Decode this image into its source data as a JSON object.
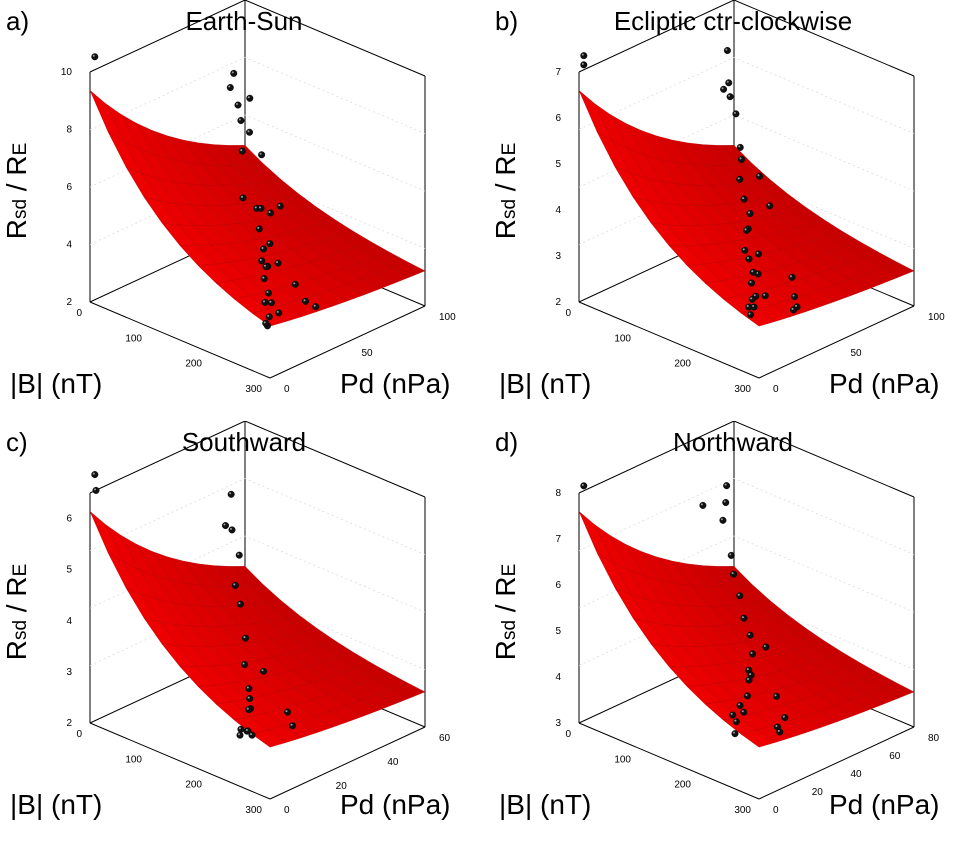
{
  "labels": {
    "y_main": "R",
    "y_sub": "sd",
    "y_sep": " / R",
    "y_sub2": "E",
    "x_axis": "|B| (nT)",
    "z_axis": "Pd (nPa)"
  },
  "colors": {
    "surface": "#e60000",
    "surface_edge": "#b00000",
    "point": "#111111",
    "axis": "#000000"
  },
  "chart_data": [
    {
      "type": "scatter",
      "letter": "a)",
      "title": "Earth-Sun",
      "ylim": [
        2,
        10
      ],
      "y_ticks": [
        "10",
        "8",
        "6",
        "4",
        "2"
      ],
      "x_ticks": [
        "0",
        "100",
        "200",
        "300"
      ],
      "z_ticks": [
        "0",
        "50",
        "100"
      ],
      "xlabel": "|B| (nT)",
      "zlabel": "Pd (nPa)",
      "ylabel": "Rsd / RE",
      "points": [
        {
          "B": 8,
          "Pd": 100,
          "R": 10.6
        },
        {
          "B": 20,
          "Pd": 15,
          "R": 8.0
        },
        {
          "B": 22,
          "Pd": 18,
          "R": 7.6
        },
        {
          "B": 40,
          "Pd": 20,
          "R": 7.2
        },
        {
          "B": 50,
          "Pd": 22,
          "R": 6.8
        },
        {
          "B": 60,
          "Pd": 25,
          "R": 5.9
        },
        {
          "B": 70,
          "Pd": 24,
          "R": 7.8
        },
        {
          "B": 85,
          "Pd": 30,
          "R": 6.9
        },
        {
          "B": 100,
          "Pd": 28,
          "R": 6.2
        },
        {
          "B": 100,
          "Pd": 40,
          "R": 5.0
        },
        {
          "B": 110,
          "Pd": 35,
          "R": 4.6
        },
        {
          "B": 130,
          "Pd": 40,
          "R": 4.9
        },
        {
          "B": 140,
          "Pd": 45,
          "R": 4.4
        },
        {
          "B": 150,
          "Pd": 42,
          "R": 3.9
        },
        {
          "B": 160,
          "Pd": 50,
          "R": 4.0
        },
        {
          "B": 170,
          "Pd": 55,
          "R": 3.8
        },
        {
          "B": 180,
          "Pd": 55,
          "R": 3.7
        },
        {
          "B": 190,
          "Pd": 60,
          "R": 3.9
        },
        {
          "B": 200,
          "Pd": 65,
          "R": 3.7
        },
        {
          "B": 210,
          "Pd": 60,
          "R": 4.2
        },
        {
          "B": 220,
          "Pd": 70,
          "R": 3.5
        },
        {
          "B": 230,
          "Pd": 72,
          "R": 3.3
        },
        {
          "B": 240,
          "Pd": 80,
          "R": 3.6
        },
        {
          "B": 250,
          "Pd": 75,
          "R": 3.2
        },
        {
          "B": 260,
          "Pd": 85,
          "R": 3.4
        },
        {
          "B": 270,
          "Pd": 90,
          "R": 3.3
        },
        {
          "B": 280,
          "Pd": 95,
          "R": 3.6
        },
        {
          "B": 200,
          "Pd": 45,
          "R": 3.0
        },
        {
          "B": 230,
          "Pd": 50,
          "R": 2.8
        },
        {
          "B": 120,
          "Pd": 30,
          "R": 4.4
        },
        {
          "B": 175,
          "Pd": 45,
          "R": 5.5
        },
        {
          "B": 260,
          "Pd": 55,
          "R": 3.0
        }
      ]
    },
    {
      "type": "scatter",
      "letter": "b)",
      "title": "Ecliptic ctr-clockwise",
      "ylim": [
        2,
        7
      ],
      "y_ticks": [
        "7",
        "6",
        "5",
        "4",
        "3",
        "2"
      ],
      "x_ticks": [
        "0",
        "100",
        "200",
        "300"
      ],
      "z_ticks": [
        "0",
        "50",
        "100"
      ],
      "xlabel": "|B| (nT)",
      "zlabel": "Pd (nPa)",
      "ylabel": "Rsd / RE",
      "points": [
        {
          "B": 8,
          "Pd": 100,
          "R": 7.4
        },
        {
          "B": 8,
          "Pd": 100,
          "R": 7.2
        },
        {
          "B": 20,
          "Pd": 12,
          "R": 6.2
        },
        {
          "B": 30,
          "Pd": 15,
          "R": 5.6
        },
        {
          "B": 40,
          "Pd": 18,
          "R": 5.4
        },
        {
          "B": 55,
          "Pd": 28,
          "R": 5.8
        },
        {
          "B": 60,
          "Pd": 22,
          "R": 5.2
        },
        {
          "B": 75,
          "Pd": 25,
          "R": 4.6
        },
        {
          "B": 90,
          "Pd": 30,
          "R": 4.5
        },
        {
          "B": 100,
          "Pd": 35,
          "R": 4.2
        },
        {
          "B": 115,
          "Pd": 38,
          "R": 3.9
        },
        {
          "B": 130,
          "Pd": 40,
          "R": 3.7
        },
        {
          "B": 140,
          "Pd": 45,
          "R": 3.5
        },
        {
          "B": 150,
          "Pd": 50,
          "R": 3.6
        },
        {
          "B": 160,
          "Pd": 55,
          "R": 3.3
        },
        {
          "B": 170,
          "Pd": 50,
          "R": 3.2
        },
        {
          "B": 180,
          "Pd": 60,
          "R": 3.3
        },
        {
          "B": 190,
          "Pd": 58,
          "R": 3.0
        },
        {
          "B": 200,
          "Pd": 65,
          "R": 3.2
        },
        {
          "B": 210,
          "Pd": 70,
          "R": 3.1
        },
        {
          "B": 220,
          "Pd": 65,
          "R": 2.8
        },
        {
          "B": 230,
          "Pd": 75,
          "R": 3.0
        },
        {
          "B": 240,
          "Pd": 80,
          "R": 2.9
        },
        {
          "B": 250,
          "Pd": 85,
          "R": 3.2
        },
        {
          "B": 260,
          "Pd": 90,
          "R": 3.0
        },
        {
          "B": 270,
          "Pd": 95,
          "R": 3.3
        },
        {
          "B": 200,
          "Pd": 40,
          "R": 2.7
        },
        {
          "B": 230,
          "Pd": 50,
          "R": 2.6
        },
        {
          "B": 120,
          "Pd": 30,
          "R": 4.3
        },
        {
          "B": 150,
          "Pd": 35,
          "R": 3.9
        },
        {
          "B": 260,
          "Pd": 60,
          "R": 2.7
        },
        {
          "B": 280,
          "Pd": 70,
          "R": 2.9
        }
      ]
    },
    {
      "type": "scatter",
      "letter": "c)",
      "title": "Southward",
      "ylim": [
        2,
        6.5
      ],
      "y_ticks": [
        "6",
        "5",
        "4",
        "3",
        "2"
      ],
      "x_ticks": [
        "0",
        "100",
        "200",
        "300"
      ],
      "z_ticks": [
        "0",
        "20",
        "40",
        "60"
      ],
      "xlabel": "|B| (nT)",
      "zlabel": "Pd (nPa)",
      "ylabel": "Rsd / RE",
      "points": [
        {
          "B": 8,
          "Pd": 60,
          "R": 6.9
        },
        {
          "B": 10,
          "Pd": 60,
          "R": 6.6
        },
        {
          "B": 20,
          "Pd": 10,
          "R": 5.4
        },
        {
          "B": 30,
          "Pd": 12,
          "R": 4.8
        },
        {
          "B": 45,
          "Pd": 18,
          "R": 5.1
        },
        {
          "B": 55,
          "Pd": 15,
          "R": 4.5
        },
        {
          "B": 70,
          "Pd": 20,
          "R": 4.1
        },
        {
          "B": 100,
          "Pd": 25,
          "R": 4.0
        },
        {
          "B": 130,
          "Pd": 30,
          "R": 3.6
        },
        {
          "B": 150,
          "Pd": 35,
          "R": 3.3
        },
        {
          "B": 160,
          "Pd": 30,
          "R": 3.1
        },
        {
          "B": 170,
          "Pd": 38,
          "R": 3.0
        },
        {
          "B": 180,
          "Pd": 40,
          "R": 2.9
        },
        {
          "B": 190,
          "Pd": 42,
          "R": 2.8
        },
        {
          "B": 200,
          "Pd": 45,
          "R": 2.9
        },
        {
          "B": 210,
          "Pd": 48,
          "R": 2.6
        },
        {
          "B": 220,
          "Pd": 50,
          "R": 2.7
        },
        {
          "B": 230,
          "Pd": 55,
          "R": 2.9
        },
        {
          "B": 250,
          "Pd": 60,
          "R": 3.0
        },
        {
          "B": 270,
          "Pd": 65,
          "R": 3.1
        },
        {
          "B": 200,
          "Pd": 30,
          "R": 2.5
        },
        {
          "B": 230,
          "Pd": 35,
          "R": 2.5
        }
      ]
    },
    {
      "type": "scatter",
      "letter": "d)",
      "title": "Northward",
      "ylim": [
        3,
        8
      ],
      "y_ticks": [
        "8",
        "7",
        "6",
        "5",
        "4",
        "3"
      ],
      "x_ticks": [
        "0",
        "100",
        "200",
        "300"
      ],
      "z_ticks": [
        "0",
        "20",
        "40",
        "60",
        "80"
      ],
      "xlabel": "|B| (nT)",
      "zlabel": "Pd (nPa)",
      "ylabel": "Rsd / RE",
      "points": [
        {
          "B": 8,
          "Pd": 80,
          "R": 8.2
        },
        {
          "B": 20,
          "Pd": 10,
          "R": 6.9
        },
        {
          "B": 25,
          "Pd": 12,
          "R": 6.6
        },
        {
          "B": 30,
          "Pd": 15,
          "R": 6.3
        },
        {
          "B": 45,
          "Pd": 30,
          "R": 7.0
        },
        {
          "B": 60,
          "Pd": 20,
          "R": 5.8
        },
        {
          "B": 80,
          "Pd": 25,
          "R": 5.6
        },
        {
          "B": 100,
          "Pd": 28,
          "R": 5.3
        },
        {
          "B": 120,
          "Pd": 32,
          "R": 5.0
        },
        {
          "B": 140,
          "Pd": 35,
          "R": 4.8
        },
        {
          "B": 160,
          "Pd": 40,
          "R": 4.6
        },
        {
          "B": 170,
          "Pd": 45,
          "R": 4.4
        },
        {
          "B": 180,
          "Pd": 48,
          "R": 4.3
        },
        {
          "B": 190,
          "Pd": 50,
          "R": 4.5
        },
        {
          "B": 200,
          "Pd": 55,
          "R": 4.2
        },
        {
          "B": 210,
          "Pd": 60,
          "R": 4.0
        },
        {
          "B": 220,
          "Pd": 65,
          "R": 4.3
        },
        {
          "B": 230,
          "Pd": 70,
          "R": 4.1
        },
        {
          "B": 240,
          "Pd": 75,
          "R": 4.4
        },
        {
          "B": 260,
          "Pd": 80,
          "R": 4.2
        },
        {
          "B": 200,
          "Pd": 40,
          "R": 3.9
        },
        {
          "B": 230,
          "Pd": 45,
          "R": 3.7
        },
        {
          "B": 250,
          "Pd": 55,
          "R": 3.8
        },
        {
          "B": 150,
          "Pd": 30,
          "R": 4.5
        },
        {
          "B": 270,
          "Pd": 60,
          "R": 3.9
        }
      ]
    }
  ]
}
